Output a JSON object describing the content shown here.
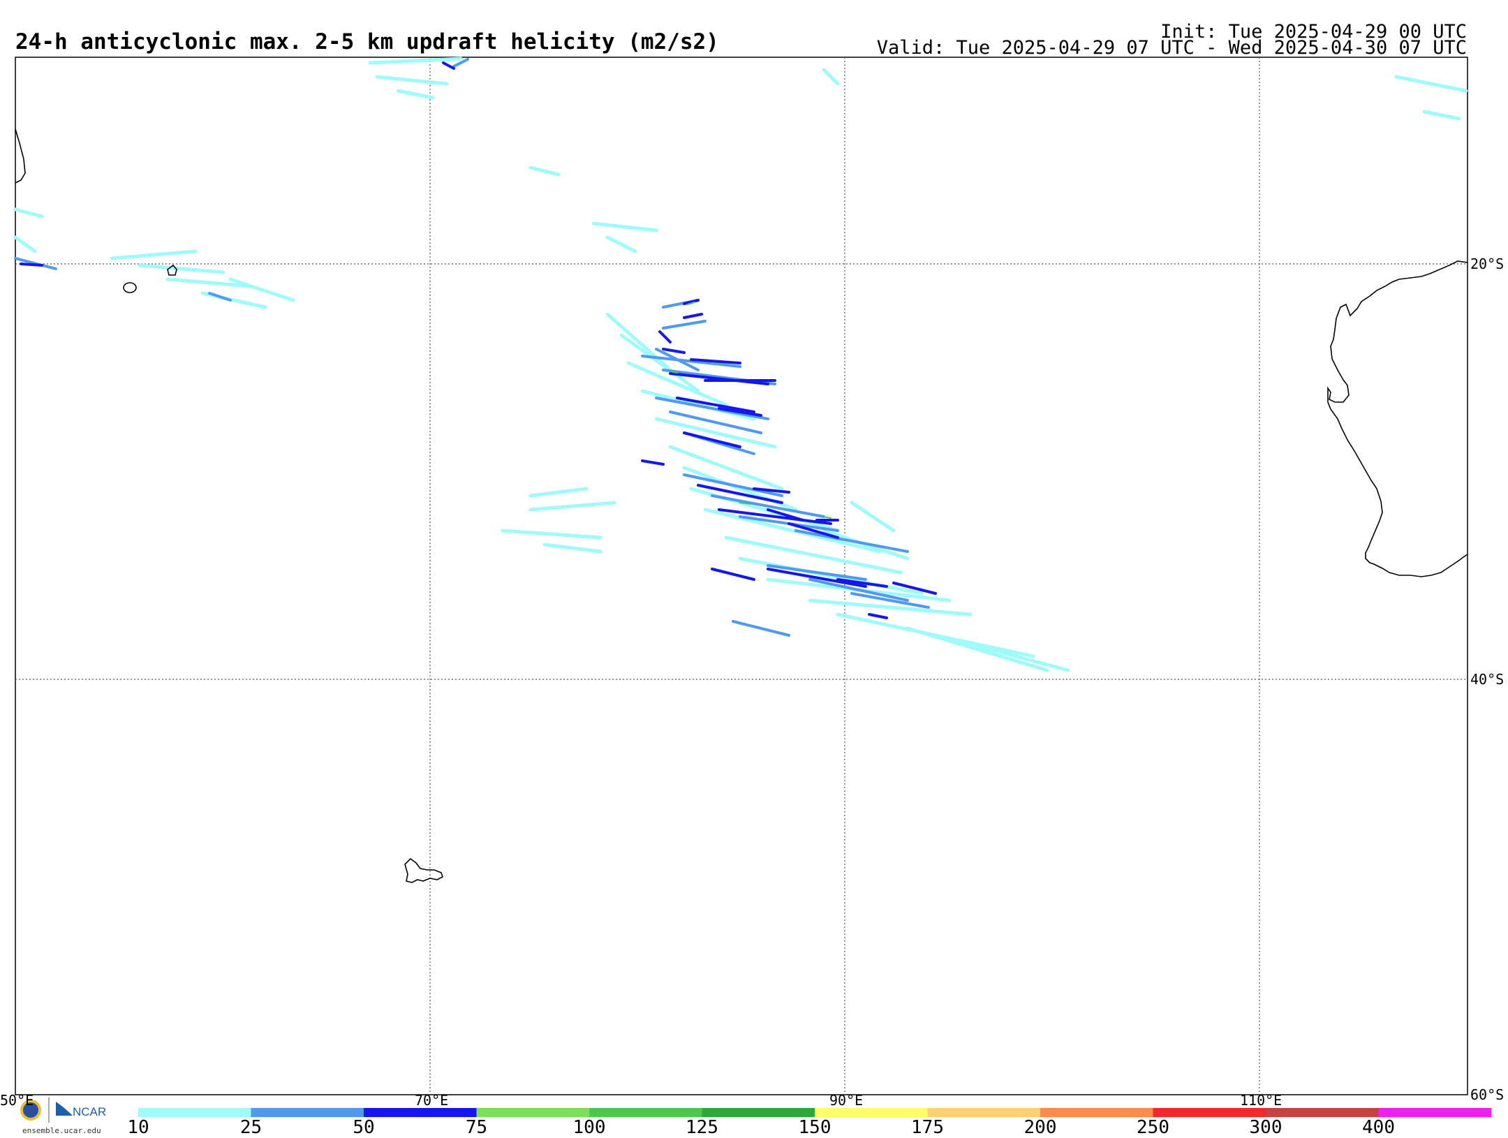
{
  "header": {
    "title": "24-h anticyclonic max. 2-5 km updraft helicity (m2/s2)",
    "init": "Init: Tue 2025-04-29 00 UTC",
    "valid": "Valid: Tue 2025-04-29 07 UTC - Wed 2025-04-30 07 UTC"
  },
  "grid": {
    "lat_labels": [
      "20°S",
      "40°S",
      "60°S"
    ],
    "lon_labels": [
      "50°E",
      "70°E",
      "90°E",
      "110°E"
    ]
  },
  "colorbar": {
    "ticks": [
      "10",
      "25",
      "50",
      "75",
      "100",
      "125",
      "150",
      "175",
      "200",
      "250",
      "300",
      "400"
    ],
    "colors": [
      "#9ffafa",
      "#4f9af0",
      "#1616f0",
      "#7ae05a",
      "#4cc94c",
      "#2aa83a",
      "#ffff66",
      "#ffd070",
      "#ff8c4a",
      "#f02a2a",
      "#c84040",
      "#f01ef0"
    ]
  },
  "logos": {
    "nsf_icon": "nsf-logo-icon",
    "ncar_text": "NCAR",
    "url": "ensemble.ucar.edu"
  }
}
